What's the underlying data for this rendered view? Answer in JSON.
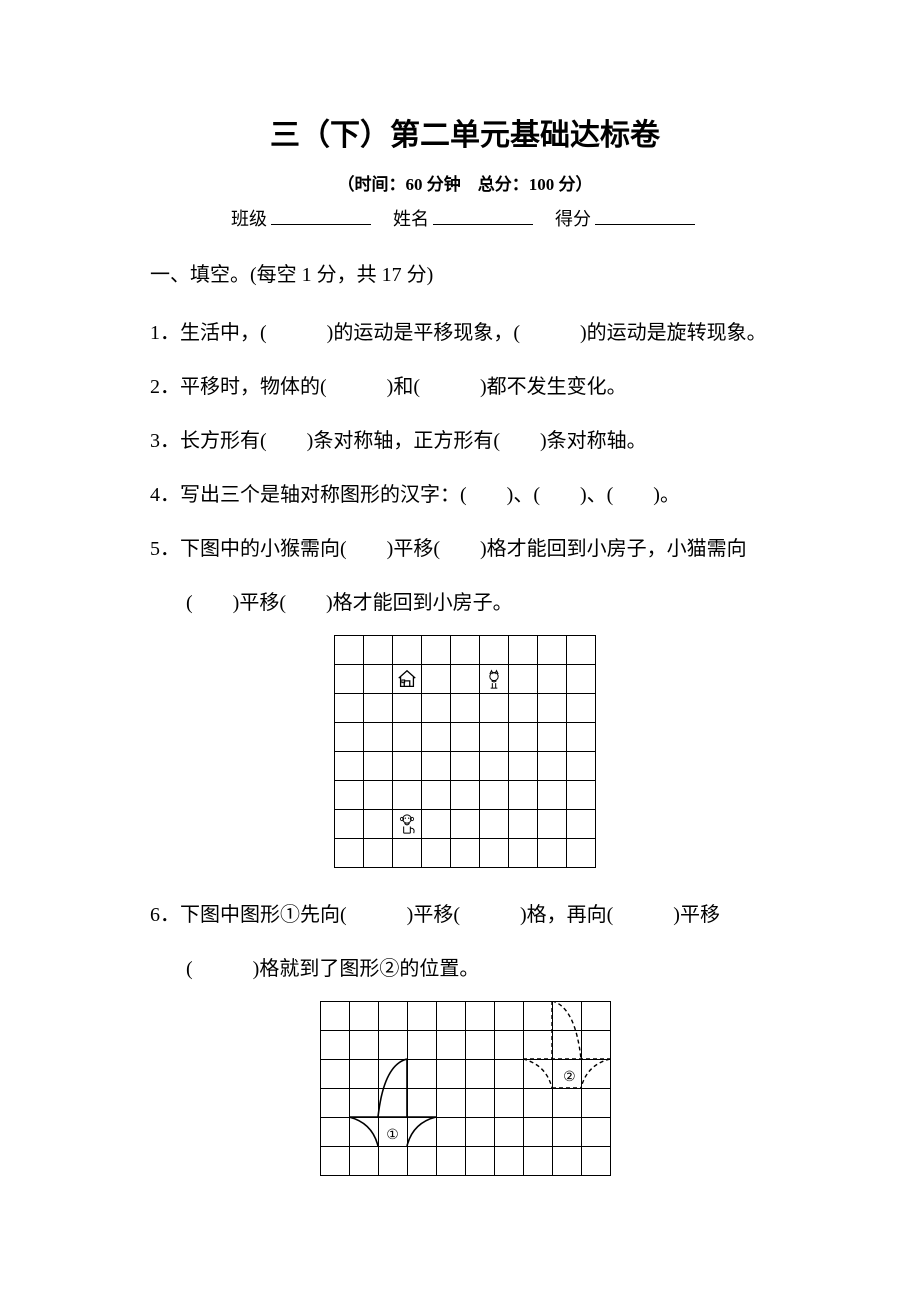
{
  "title": "三（下）第二单元基础达标卷",
  "subtitle": "（时间：60 分钟　总分：100 分）",
  "info": {
    "class_label": "班级",
    "name_label": "姓名",
    "score_label": "得分"
  },
  "section1": "一、填空。(每空 1 分，共 17 分)",
  "q1": "1．生活中，(　　　)的运动是平移现象，(　　　)的运动是旋转现象。",
  "q2": "2．平移时，物体的(　　　)和(　　　)都不发生变化。",
  "q3": "3．长方形有(　　)条对称轴，正方形有(　　)条对称轴。",
  "q4": "4．写出三个是轴对称图形的汉字：(　　)、(　　)、(　　)。",
  "q5a": "5．下图中的小猴需向(　　)平移(　　)格才能回到小房子，小猫需向",
  "q5b": "(　　)平移(　　)格才能回到小房子。",
  "q6a": "6．下图中图形①先向(　　　)平移(　　　)格，再向(　　　)平移",
  "q6b": "(　　　)格就到了图形②的位置。",
  "grid1": {
    "rows": 8,
    "cols": 9,
    "house": {
      "r": 1,
      "c": 2
    },
    "cat": {
      "r": 1,
      "c": 5
    },
    "monkey": {
      "r": 6,
      "c": 2
    }
  },
  "grid2": {
    "rows": 6,
    "cols": 10,
    "label1": "①",
    "label2": "②"
  }
}
